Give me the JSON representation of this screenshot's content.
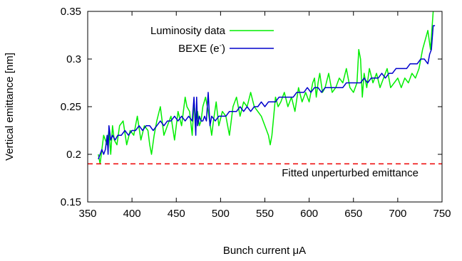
{
  "chart_data": {
    "type": "line",
    "xlabel": "Bunch current μA",
    "ylabel": "Vertical emittance [nm]",
    "xlim": [
      350,
      750
    ],
    "ylim": [
      0.15,
      0.35
    ],
    "x_ticks": [
      350,
      400,
      450,
      500,
      550,
      600,
      650,
      700,
      750
    ],
    "x_tick_labels": [
      "350",
      "400",
      "450",
      "500",
      "550",
      "600",
      "650",
      "700",
      "750"
    ],
    "y_ticks": [
      0.15,
      0.2,
      0.25,
      0.3,
      0.35
    ],
    "y_tick_labels": [
      "0.15",
      "0.2",
      "0.25",
      "0.3",
      "0.35"
    ],
    "grid": false,
    "legend_position": "top-left",
    "series": [
      {
        "name": "Luminosity data",
        "color": "#00ee00",
        "x": [
          362,
          364,
          366,
          368,
          370,
          372,
          374,
          376,
          378,
          380,
          383,
          386,
          390,
          394,
          398,
          402,
          406,
          410,
          414,
          418,
          420,
          422,
          425,
          428,
          432,
          436,
          440,
          444,
          448,
          452,
          456,
          460,
          462,
          465,
          468,
          470,
          472,
          474,
          476,
          478,
          480,
          483,
          486,
          490,
          492,
          495,
          498,
          502,
          506,
          510,
          514,
          518,
          522,
          526,
          530,
          534,
          538,
          542,
          546,
          550,
          554,
          556,
          558,
          560,
          562,
          565,
          568,
          572,
          576,
          580,
          584,
          588,
          592,
          596,
          600,
          604,
          606,
          608,
          610,
          612,
          615,
          618,
          622,
          626,
          630,
          634,
          638,
          642,
          646,
          650,
          654,
          656,
          658,
          660,
          662,
          665,
          668,
          672,
          676,
          680,
          684,
          688,
          692,
          696,
          700,
          704,
          708,
          712,
          716,
          720,
          724,
          728,
          731,
          734,
          737,
          740,
          742
        ],
        "y": [
          0.2,
          0.19,
          0.205,
          0.22,
          0.215,
          0.21,
          0.225,
          0.2,
          0.23,
          0.215,
          0.21,
          0.23,
          0.235,
          0.21,
          0.225,
          0.22,
          0.24,
          0.215,
          0.23,
          0.225,
          0.21,
          0.2,
          0.22,
          0.235,
          0.25,
          0.22,
          0.23,
          0.24,
          0.215,
          0.245,
          0.23,
          0.26,
          0.25,
          0.245,
          0.22,
          0.255,
          0.235,
          0.245,
          0.23,
          0.235,
          0.25,
          0.26,
          0.245,
          0.22,
          0.235,
          0.255,
          0.23,
          0.245,
          0.24,
          0.22,
          0.25,
          0.26,
          0.24,
          0.255,
          0.25,
          0.265,
          0.25,
          0.245,
          0.24,
          0.23,
          0.22,
          0.21,
          0.22,
          0.24,
          0.26,
          0.25,
          0.255,
          0.265,
          0.25,
          0.26,
          0.245,
          0.27,
          0.255,
          0.265,
          0.255,
          0.275,
          0.28,
          0.26,
          0.275,
          0.285,
          0.265,
          0.27,
          0.285,
          0.265,
          0.27,
          0.28,
          0.275,
          0.29,
          0.27,
          0.265,
          0.275,
          0.31,
          0.3,
          0.26,
          0.285,
          0.27,
          0.29,
          0.275,
          0.285,
          0.27,
          0.28,
          0.29,
          0.27,
          0.275,
          0.28,
          0.27,
          0.28,
          0.275,
          0.285,
          0.28,
          0.29,
          0.31,
          0.32,
          0.33,
          0.31,
          0.35,
          0.36
        ]
      },
      {
        "name": "BEXE (e-)",
        "color": "#0000cc",
        "x": [
          362,
          364,
          366,
          368,
          370,
          372,
          373,
          374,
          376,
          378,
          381,
          384,
          388,
          392,
          396,
          400,
          404,
          408,
          412,
          416,
          420,
          424,
          428,
          432,
          436,
          440,
          444,
          448,
          452,
          456,
          460,
          464,
          468,
          470,
          472,
          473,
          474,
          476,
          478,
          480,
          482,
          484,
          486,
          488,
          490,
          494,
          498,
          502,
          506,
          510,
          514,
          518,
          522,
          526,
          530,
          534,
          538,
          542,
          546,
          550,
          554,
          558,
          562,
          566,
          570,
          574,
          578,
          582,
          586,
          590,
          594,
          598,
          602,
          606,
          610,
          614,
          618,
          622,
          626,
          630,
          634,
          638,
          642,
          646,
          650,
          654,
          658,
          662,
          666,
          670,
          674,
          678,
          682,
          686,
          690,
          694,
          698,
          702,
          706,
          710,
          714,
          718,
          722,
          726,
          730,
          734,
          736,
          738,
          740,
          742
        ],
        "y": [
          0.195,
          0.2,
          0.205,
          0.2,
          0.205,
          0.22,
          0.2,
          0.23,
          0.215,
          0.22,
          0.215,
          0.22,
          0.22,
          0.225,
          0.22,
          0.225,
          0.225,
          0.23,
          0.225,
          0.23,
          0.23,
          0.225,
          0.23,
          0.235,
          0.23,
          0.235,
          0.235,
          0.24,
          0.235,
          0.24,
          0.235,
          0.24,
          0.235,
          0.26,
          0.22,
          0.26,
          0.23,
          0.24,
          0.235,
          0.235,
          0.24,
          0.235,
          0.265,
          0.23,
          0.24,
          0.235,
          0.24,
          0.24,
          0.24,
          0.245,
          0.245,
          0.245,
          0.25,
          0.245,
          0.25,
          0.245,
          0.25,
          0.25,
          0.255,
          0.25,
          0.255,
          0.255,
          0.255,
          0.26,
          0.26,
          0.26,
          0.26,
          0.26,
          0.265,
          0.265,
          0.265,
          0.27,
          0.265,
          0.27,
          0.27,
          0.265,
          0.27,
          0.27,
          0.27,
          0.27,
          0.27,
          0.27,
          0.275,
          0.275,
          0.275,
          0.275,
          0.275,
          0.28,
          0.275,
          0.28,
          0.28,
          0.28,
          0.285,
          0.28,
          0.285,
          0.285,
          0.29,
          0.29,
          0.29,
          0.29,
          0.295,
          0.295,
          0.295,
          0.3,
          0.3,
          0.295,
          0.305,
          0.31,
          0.335,
          0.335
        ]
      }
    ],
    "reference_line": {
      "y": 0.19,
      "color": "#ee0000",
      "label": "Fitted unperturbed emittance"
    }
  }
}
